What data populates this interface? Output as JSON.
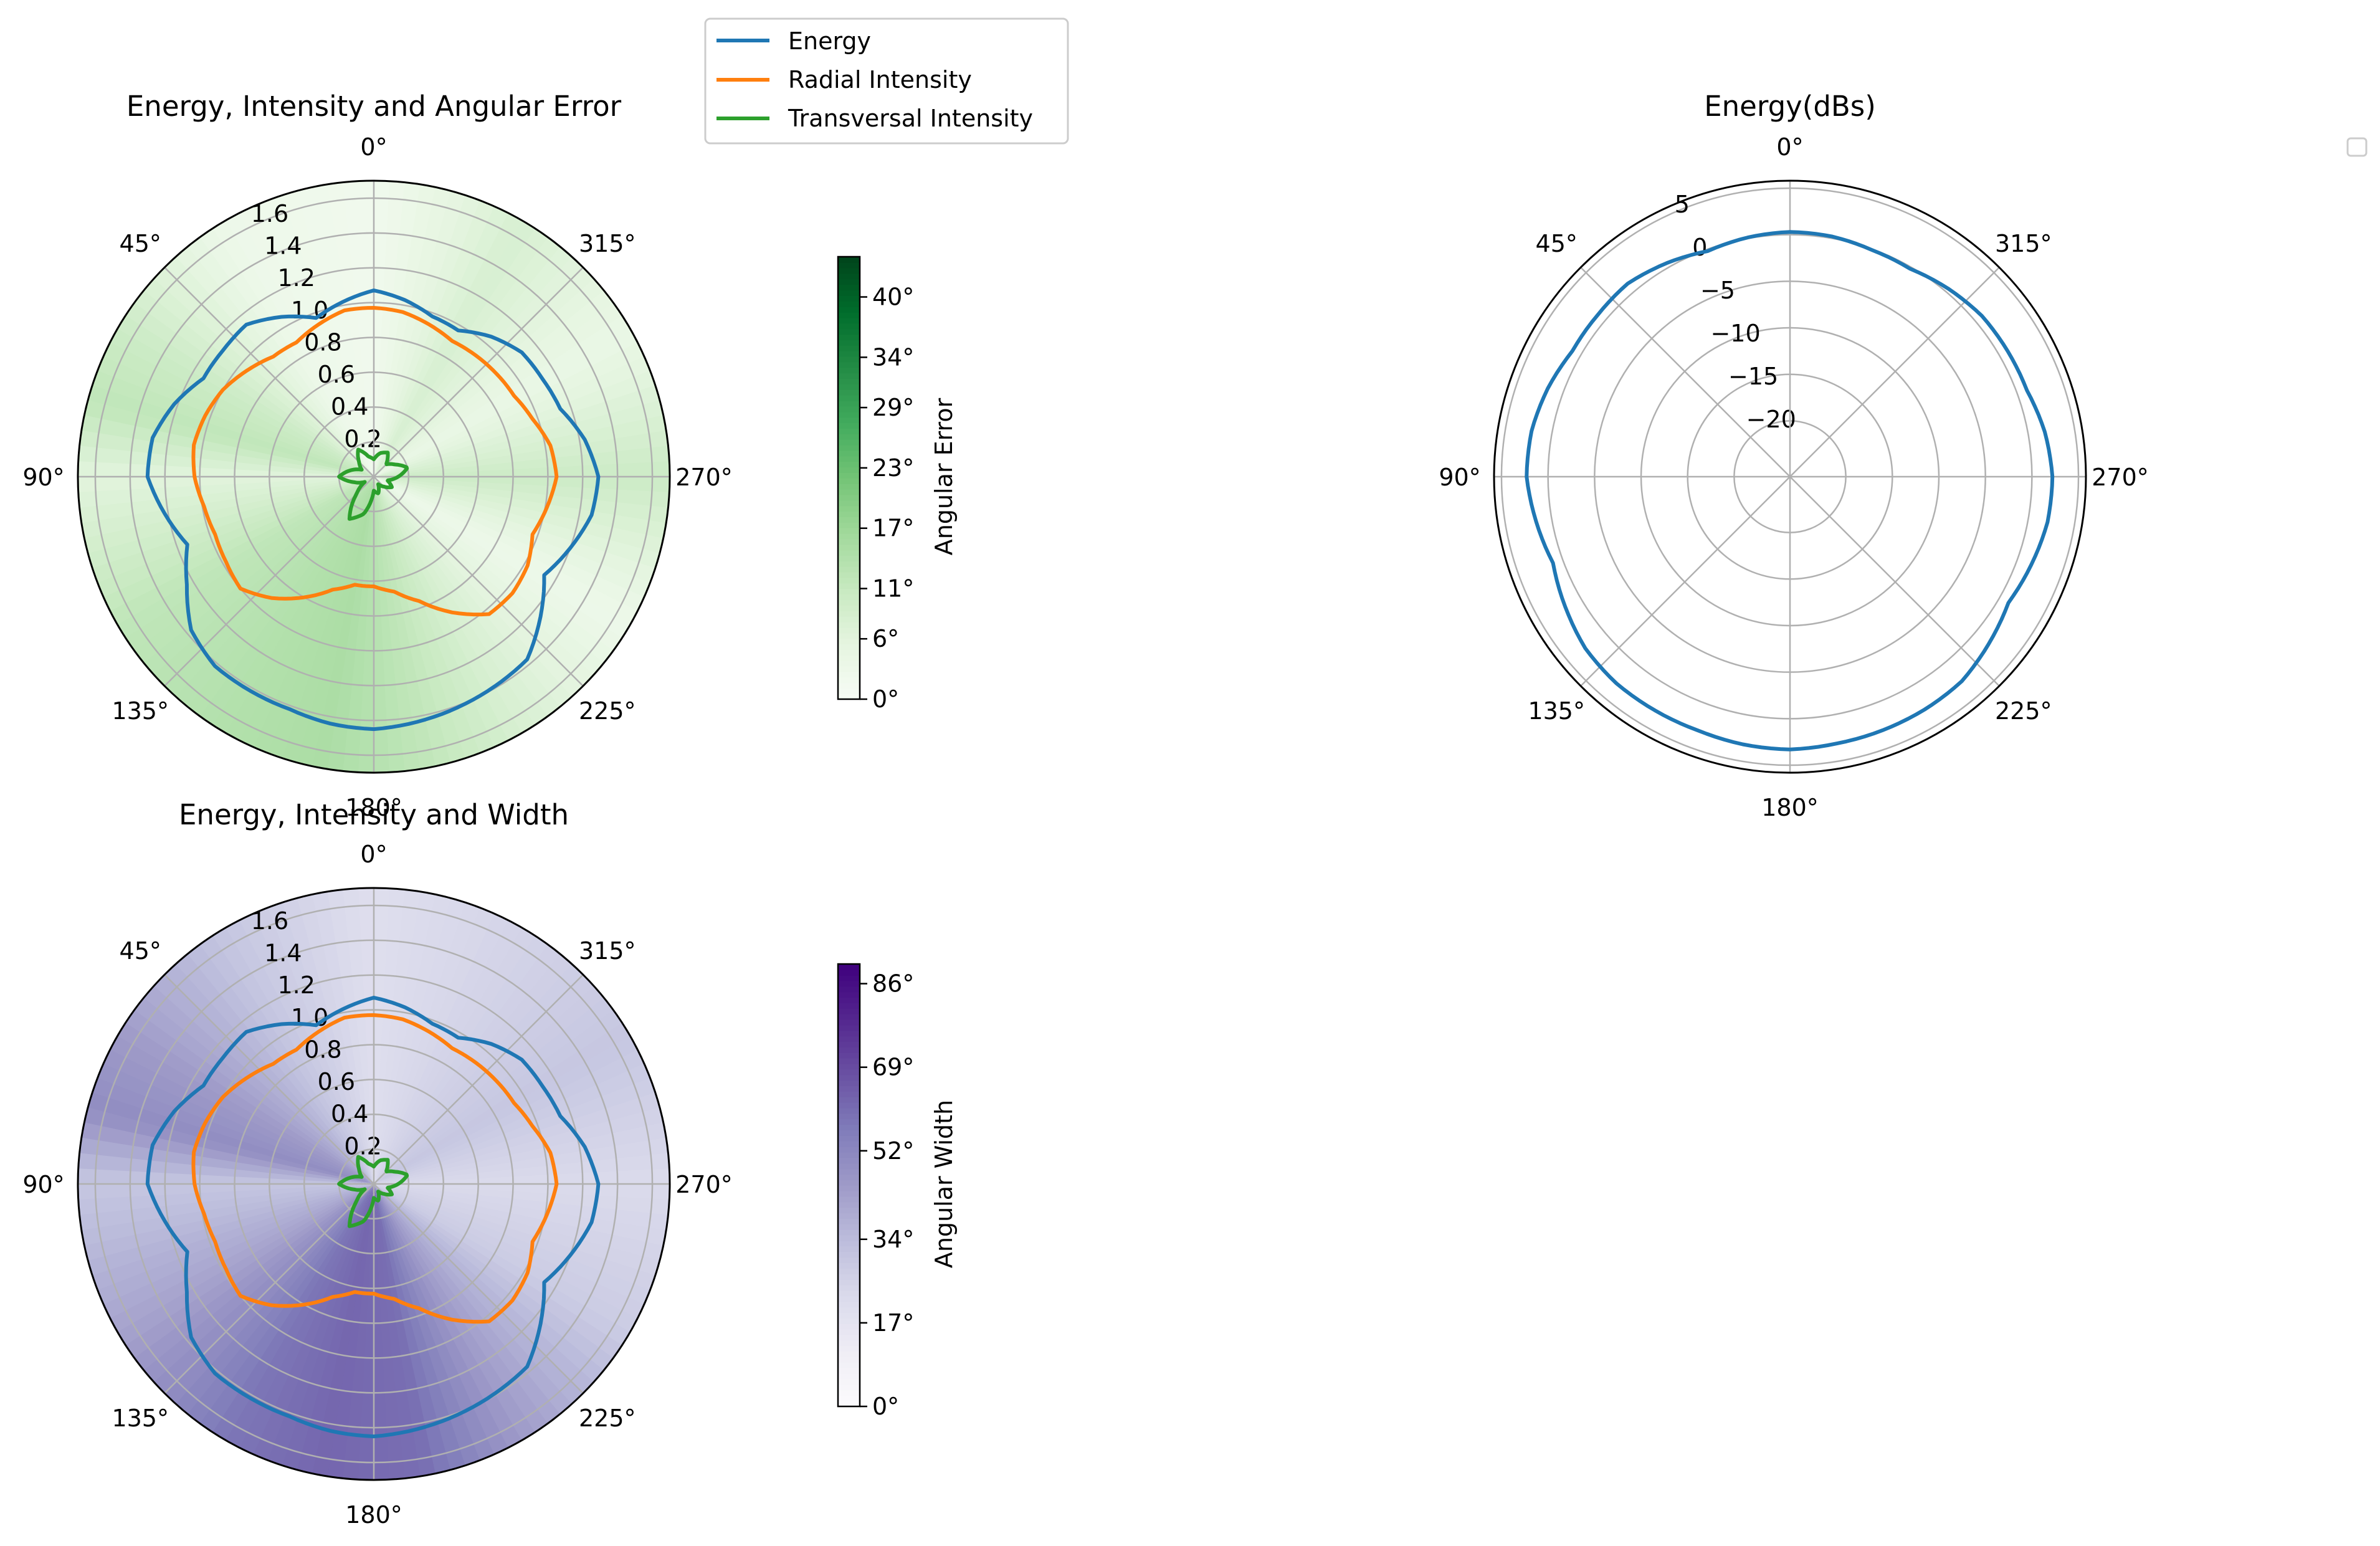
{
  "legend": {
    "entries": [
      {
        "label": "Energy",
        "color": "#1f77b4"
      },
      {
        "label": "Radial Intensity",
        "color": "#ff7f0e"
      },
      {
        "label": "Transversal Intensity",
        "color": "#2ca02c"
      }
    ]
  },
  "chart_data": [
    {
      "type": "polar-line",
      "title": "Energy, Intensity and Angular Error",
      "direction": "counterclockwise",
      "zero_location": "top",
      "angle_tick_labels": [
        "0°",
        "45°",
        "90°",
        "135°",
        "180°",
        "225°",
        "270°",
        "315°"
      ],
      "radial_tick_labels": [
        "0.2",
        "0.4",
        "0.6",
        "0.8",
        "1.0",
        "1.2",
        "1.4",
        "1.6"
      ],
      "rlim": [
        0,
        1.7
      ],
      "grid": true,
      "background": {
        "quantity": "Angular Error",
        "colormap": "Greens",
        "colorbar_label": "Angular Error",
        "colorbar_ticks": [
          "0°",
          "6°",
          "11°",
          "17°",
          "23°",
          "29°",
          "34°",
          "40°"
        ],
        "clim_deg": [
          0,
          44
        ],
        "theta_deg": [
          0,
          30,
          60,
          75,
          90,
          120,
          150,
          170,
          190,
          210,
          240,
          270,
          300,
          330,
          360
        ],
        "values_deg": [
          2,
          3,
          10,
          12,
          6,
          12,
          14,
          15,
          12,
          8,
          3,
          10,
          4,
          8,
          2
        ]
      },
      "series": [
        {
          "name": "Energy",
          "color": "#1f77b4",
          "theta_deg": [
            0,
            10,
            20,
            30,
            40,
            50,
            60,
            70,
            80,
            90,
            100,
            110,
            120,
            130,
            140,
            150,
            160,
            170,
            180,
            190,
            200,
            210,
            220,
            230,
            240,
            250,
            260,
            270,
            280,
            290,
            300,
            310,
            320,
            330,
            340,
            350,
            360
          ],
          "r": [
            1.07,
            1.02,
            0.97,
            1.06,
            1.14,
            1.13,
            1.13,
            1.22,
            1.29,
            1.3,
            1.22,
            1.14,
            1.24,
            1.37,
            1.42,
            1.42,
            1.42,
            1.44,
            1.45,
            1.43,
            1.41,
            1.39,
            1.37,
            1.25,
            1.13,
            1.2,
            1.27,
            1.29,
            1.23,
            1.14,
            1.12,
            1.11,
            1.05,
            0.97,
            0.98,
            1.03,
            1.07
          ]
        },
        {
          "name": "Radial Intensity",
          "color": "#ff7f0e",
          "theta_deg": [
            0,
            10,
            20,
            30,
            40,
            50,
            60,
            70,
            80,
            90,
            100,
            110,
            120,
            130,
            140,
            150,
            160,
            170,
            180,
            190,
            200,
            210,
            220,
            230,
            240,
            250,
            260,
            270,
            280,
            290,
            300,
            310,
            320,
            330,
            340,
            350,
            360
          ],
          "r": [
            0.97,
            0.97,
            0.93,
            0.89,
            0.9,
            0.95,
            1.0,
            1.03,
            1.05,
            1.03,
            0.99,
            0.97,
            0.98,
            1.0,
            0.91,
            0.8,
            0.69,
            0.63,
            0.63,
            0.67,
            0.76,
            0.9,
            1.03,
            1.04,
            1.02,
            0.97,
            1.01,
            1.05,
            1.03,
            0.97,
            0.93,
            0.92,
            0.91,
            0.9,
            0.93,
            0.96,
            0.97
          ]
        },
        {
          "name": "Transversal Intensity",
          "color": "#2ca02c",
          "theta_deg": [
            0,
            15,
            30,
            45,
            60,
            75,
            90,
            105,
            120,
            135,
            150,
            165,
            180,
            195,
            210,
            225,
            240,
            255,
            270,
            285,
            300,
            315,
            330,
            345,
            360
          ],
          "r": [
            0.1,
            0.12,
            0.18,
            0.12,
            0.08,
            0.14,
            0.2,
            0.12,
            0.06,
            0.14,
            0.28,
            0.22,
            0.08,
            0.1,
            0.05,
            0.08,
            0.12,
            0.08,
            0.14,
            0.2,
            0.14,
            0.1,
            0.16,
            0.14,
            0.1
          ]
        }
      ]
    },
    {
      "type": "polar-line",
      "title": "Energy(dBs)",
      "direction": "counterclockwise",
      "zero_location": "top",
      "angle_tick_labels": [
        "0°",
        "45°",
        "90°",
        "135°",
        "180°",
        "225°",
        "270°",
        "315°"
      ],
      "radial_ticks": [
        -20,
        -15,
        -10,
        -5,
        0,
        5
      ],
      "radial_tick_labels": [
        "−20",
        "−15",
        "−10",
        "−5",
        "0",
        "5"
      ],
      "rlim": [
        -26,
        5.8
      ],
      "grid": true,
      "legend": "empty box at top-right",
      "series": [
        {
          "name": "Energy",
          "color": "#1f77b4",
          "theta_deg": [
            0,
            10,
            20,
            30,
            40,
            50,
            60,
            70,
            80,
            90,
            100,
            110,
            120,
            130,
            140,
            150,
            160,
            170,
            180,
            190,
            200,
            210,
            220,
            230,
            240,
            250,
            260,
            270,
            280,
            290,
            300,
            310,
            320,
            330,
            340,
            350,
            360
          ],
          "r": [
            0.3,
            0.1,
            -0.2,
            0.5,
            1.1,
            1.0,
            1.0,
            1.7,
            2.2,
            2.3,
            1.7,
            1.1,
            1.9,
            2.7,
            3.0,
            3.0,
            3.0,
            3.2,
            3.3,
            3.1,
            3.0,
            2.9,
            2.7,
            1.9,
            1.1,
            1.6,
            2.1,
            2.2,
            1.8,
            1.1,
            1.0,
            0.9,
            0.4,
            -0.2,
            -0.1,
            0.2,
            0.3
          ]
        }
      ]
    },
    {
      "type": "polar-line",
      "title": "Energy, Intensity and Width",
      "direction": "counterclockwise",
      "zero_location": "top",
      "angle_tick_labels": [
        "0°",
        "45°",
        "90°",
        "135°",
        "180°",
        "225°",
        "270°",
        "315°"
      ],
      "radial_tick_labels": [
        "0.2",
        "0.4",
        "0.6",
        "0.8",
        "1.0",
        "1.2",
        "1.4",
        "1.6"
      ],
      "rlim": [
        0,
        1.7
      ],
      "grid": true,
      "background": {
        "quantity": "Angular Width",
        "colormap": "Purples",
        "colorbar_label": "Angular Width",
        "colorbar_ticks": [
          "0°",
          "17°",
          "34°",
          "52°",
          "69°",
          "86°"
        ],
        "clim_deg": [
          0,
          90
        ],
        "theta_deg": [
          0,
          30,
          60,
          75,
          90,
          120,
          150,
          170,
          190,
          210,
          240,
          270,
          300,
          330,
          360
        ],
        "values_deg": [
          20,
          30,
          45,
          50,
          30,
          42,
          58,
          62,
          60,
          45,
          28,
          22,
          30,
          25,
          20
        ]
      },
      "series": [
        {
          "name": "Energy",
          "color": "#1f77b4",
          "theta_deg": [
            0,
            10,
            20,
            30,
            40,
            50,
            60,
            70,
            80,
            90,
            100,
            110,
            120,
            130,
            140,
            150,
            160,
            170,
            180,
            190,
            200,
            210,
            220,
            230,
            240,
            250,
            260,
            270,
            280,
            290,
            300,
            310,
            320,
            330,
            340,
            350,
            360
          ],
          "r": [
            1.07,
            1.02,
            0.97,
            1.06,
            1.14,
            1.13,
            1.13,
            1.22,
            1.29,
            1.3,
            1.22,
            1.14,
            1.24,
            1.37,
            1.42,
            1.42,
            1.42,
            1.44,
            1.45,
            1.43,
            1.41,
            1.39,
            1.37,
            1.25,
            1.13,
            1.2,
            1.27,
            1.29,
            1.23,
            1.14,
            1.12,
            1.11,
            1.05,
            0.97,
            0.98,
            1.03,
            1.07
          ]
        },
        {
          "name": "Radial Intensity",
          "color": "#ff7f0e",
          "theta_deg": [
            0,
            10,
            20,
            30,
            40,
            50,
            60,
            70,
            80,
            90,
            100,
            110,
            120,
            130,
            140,
            150,
            160,
            170,
            180,
            190,
            200,
            210,
            220,
            230,
            240,
            250,
            260,
            270,
            280,
            290,
            300,
            310,
            320,
            330,
            340,
            350,
            360
          ],
          "r": [
            0.97,
            0.97,
            0.93,
            0.89,
            0.9,
            0.95,
            1.0,
            1.03,
            1.05,
            1.03,
            0.99,
            0.97,
            0.98,
            1.0,
            0.91,
            0.8,
            0.69,
            0.63,
            0.63,
            0.67,
            0.76,
            0.9,
            1.03,
            1.04,
            1.02,
            0.97,
            1.01,
            1.05,
            1.03,
            0.97,
            0.93,
            0.92,
            0.91,
            0.9,
            0.93,
            0.96,
            0.97
          ]
        },
        {
          "name": "Transversal Intensity",
          "color": "#2ca02c",
          "theta_deg": [
            0,
            15,
            30,
            45,
            60,
            75,
            90,
            105,
            120,
            135,
            150,
            165,
            180,
            195,
            210,
            225,
            240,
            255,
            270,
            285,
            300,
            315,
            330,
            345,
            360
          ],
          "r": [
            0.1,
            0.12,
            0.18,
            0.12,
            0.08,
            0.14,
            0.2,
            0.12,
            0.06,
            0.14,
            0.28,
            0.22,
            0.08,
            0.1,
            0.05,
            0.08,
            0.12,
            0.08,
            0.14,
            0.2,
            0.14,
            0.1,
            0.16,
            0.14,
            0.1
          ]
        }
      ]
    }
  ]
}
